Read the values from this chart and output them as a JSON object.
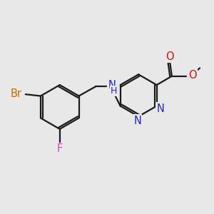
{
  "background_color": "#e8e8e8",
  "bond_color": "#1a1a1a",
  "bond_width": 1.6,
  "atom_colors": {
    "N": "#2222cc",
    "O": "#cc1111",
    "Br": "#cc6600",
    "F": "#dd44bb"
  },
  "font_size": 10.5,
  "figsize": [
    3.0,
    3.0
  ],
  "dpi": 100
}
